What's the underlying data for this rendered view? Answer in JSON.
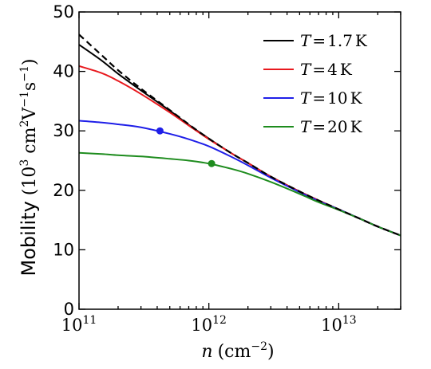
{
  "chart_data": {
    "type": "line",
    "xlabel": {
      "symbol": "n",
      "unit_prefix": "(cm",
      "unit_exp": "−2",
      "unit_suffix": ")"
    },
    "ylabel": {
      "word": "Mobility",
      "p1": "(10",
      "e1": "3",
      "p2": " cm",
      "e2": "2",
      "p3": "V",
      "e3": "−1",
      "p4": "s",
      "e4": "−1",
      "p5": ")"
    },
    "x_scale": "log",
    "xlim": [
      100000000000.0,
      30000000000000.0
    ],
    "ylim": [
      0,
      50
    ],
    "x_ticks": [
      {
        "value": 100000000000.0,
        "base": "10",
        "exp": "11"
      },
      {
        "value": 1000000000000.0,
        "base": "10",
        "exp": "12"
      },
      {
        "value": 10000000000000.0,
        "base": "10",
        "exp": "13"
      }
    ],
    "y_ticks": [
      {
        "value": 0,
        "label": "0"
      },
      {
        "value": 10,
        "label": "10"
      },
      {
        "value": 20,
        "label": "20"
      },
      {
        "value": 30,
        "label": "30"
      },
      {
        "value": 40,
        "label": "40"
      },
      {
        "value": 50,
        "label": "50"
      }
    ],
    "grid": false,
    "legend_position": "top-right",
    "series": [
      {
        "name": "1.7",
        "color": "#000000",
        "dash": "solid",
        "points": [
          [
            100000000000.0,
            44.5
          ],
          [
            150000000000.0,
            41.8
          ],
          [
            200000000000.0,
            39.6
          ],
          [
            300000000000.0,
            36.8
          ],
          [
            500000000000.0,
            33.4
          ],
          [
            700000000000.0,
            31.0
          ],
          [
            1000000000000.0,
            28.7
          ],
          [
            1500000000000.0,
            26.2
          ],
          [
            2000000000000.0,
            24.6
          ],
          [
            3000000000000.0,
            22.3
          ],
          [
            5000000000000.0,
            19.8
          ],
          [
            7000000000000.0,
            18.3
          ],
          [
            10000000000000.0,
            16.8
          ],
          [
            15000000000000.0,
            15.1
          ],
          [
            20000000000000.0,
            13.9
          ],
          [
            30000000000000.0,
            12.4
          ]
        ]
      },
      {
        "name": "4",
        "color": "#e8191e",
        "dash": "solid",
        "points": [
          [
            100000000000.0,
            40.9
          ],
          [
            150000000000.0,
            39.7
          ],
          [
            200000000000.0,
            38.4
          ],
          [
            300000000000.0,
            36.2
          ],
          [
            500000000000.0,
            33.1
          ],
          [
            700000000000.0,
            30.9
          ],
          [
            1000000000000.0,
            28.6
          ],
          [
            1500000000000.0,
            26.2
          ],
          [
            2000000000000.0,
            24.6
          ],
          [
            3000000000000.0,
            22.3
          ],
          [
            5000000000000.0,
            19.8
          ],
          [
            7000000000000.0,
            18.3
          ],
          [
            10000000000000.0,
            16.8
          ],
          [
            15000000000000.0,
            15.1
          ],
          [
            20000000000000.0,
            13.9
          ],
          [
            30000000000000.0,
            12.4
          ]
        ]
      },
      {
        "name": "10",
        "color": "#1f1fe8",
        "dash": "solid",
        "marker": [
          420000000000.0,
          30.0
        ],
        "points": [
          [
            100000000000.0,
            31.7
          ],
          [
            150000000000.0,
            31.4
          ],
          [
            200000000000.0,
            31.1
          ],
          [
            300000000000.0,
            30.6
          ],
          [
            500000000000.0,
            29.5
          ],
          [
            700000000000.0,
            28.6
          ],
          [
            1000000000000.0,
            27.4
          ],
          [
            1500000000000.0,
            25.6
          ],
          [
            2000000000000.0,
            24.2
          ],
          [
            3000000000000.0,
            22.1
          ],
          [
            5000000000000.0,
            19.7
          ],
          [
            7000000000000.0,
            18.2
          ],
          [
            10000000000000.0,
            16.8
          ],
          [
            15000000000000.0,
            15.1
          ],
          [
            20000000000000.0,
            13.9
          ],
          [
            30000000000000.0,
            12.4
          ]
        ]
      },
      {
        "name": "20",
        "color": "#1e8c1e",
        "dash": "solid",
        "marker": [
          1050000000000.0,
          24.5
        ],
        "points": [
          [
            100000000000.0,
            26.3
          ],
          [
            150000000000.0,
            26.1
          ],
          [
            200000000000.0,
            25.9
          ],
          [
            300000000000.0,
            25.7
          ],
          [
            500000000000.0,
            25.3
          ],
          [
            700000000000.0,
            25.0
          ],
          [
            1000000000000.0,
            24.5
          ],
          [
            1500000000000.0,
            23.6
          ],
          [
            2000000000000.0,
            22.8
          ],
          [
            3000000000000.0,
            21.4
          ],
          [
            5000000000000.0,
            19.4
          ],
          [
            7000000000000.0,
            18.0
          ],
          [
            10000000000000.0,
            16.7
          ],
          [
            15000000000000.0,
            15.1
          ],
          [
            20000000000000.0,
            13.9
          ],
          [
            30000000000000.0,
            12.4
          ]
        ]
      },
      {
        "name": "",
        "color": "#000000",
        "dash": "dashed",
        "points": [
          [
            100000000000.0,
            46.2
          ],
          [
            150000000000.0,
            42.7
          ],
          [
            200000000000.0,
            40.2
          ],
          [
            300000000000.0,
            37.1
          ],
          [
            500000000000.0,
            33.5
          ],
          [
            700000000000.0,
            31.1
          ],
          [
            1000000000000.0,
            28.7
          ],
          [
            1500000000000.0,
            26.2
          ],
          [
            2000000000000.0,
            24.6
          ],
          [
            3000000000000.0,
            22.3
          ],
          [
            5000000000000.0,
            19.8
          ],
          [
            7000000000000.0,
            18.3
          ],
          [
            10000000000000.0,
            16.8
          ],
          [
            15000000000000.0,
            15.1
          ],
          [
            20000000000000.0,
            13.9
          ],
          [
            30000000000000.0,
            12.4
          ]
        ]
      }
    ],
    "legend": {
      "var": "T",
      "eq": "=",
      "unit": "K"
    }
  }
}
